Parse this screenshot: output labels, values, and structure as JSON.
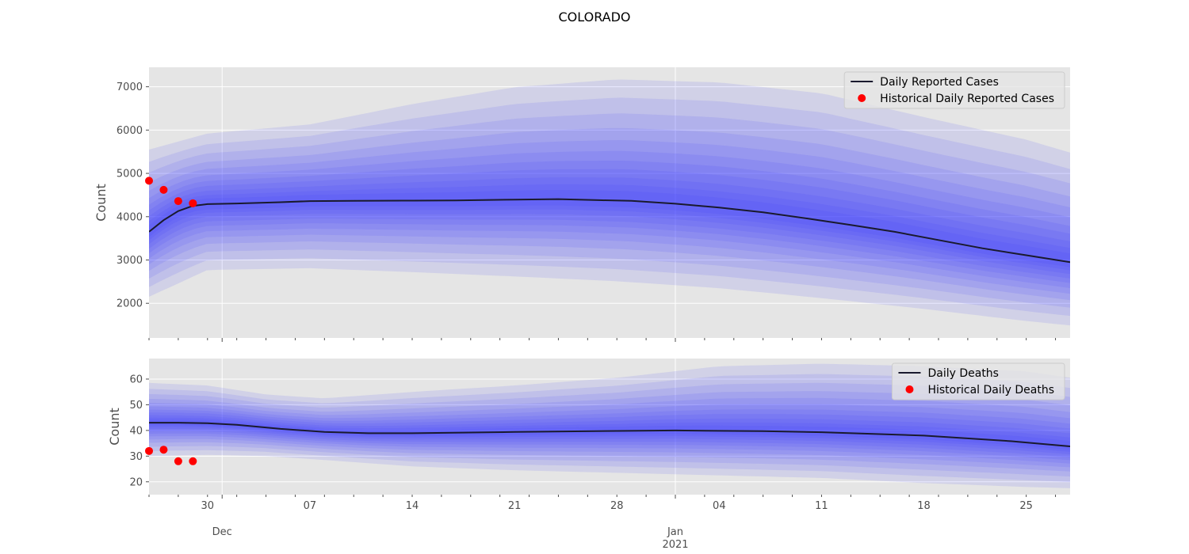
{
  "figure": {
    "title": "COLORADO"
  },
  "chart_data": [
    {
      "type": "line",
      "title": "",
      "xlabel": "",
      "ylabel": "Count",
      "xlim": [
        "2020-11-26",
        "2021-01-28"
      ],
      "ylim": [
        1200,
        7450
      ],
      "yticks": [
        2000,
        3000,
        4000,
        5000,
        6000,
        7000
      ],
      "grid": true,
      "legend_position": "top-right",
      "series": [
        {
          "name": "Daily Reported Cases",
          "kind": "line",
          "color": "#1a1a2e",
          "x": [
            "2020-11-26",
            "2020-11-27",
            "2020-11-28",
            "2020-11-29",
            "2020-11-30",
            "2020-12-02",
            "2020-12-05",
            "2020-12-07",
            "2020-12-10",
            "2020-12-14",
            "2020-12-17",
            "2020-12-21",
            "2020-12-24",
            "2020-12-27",
            "2020-12-29",
            "2021-01-01",
            "2021-01-04",
            "2021-01-07",
            "2021-01-10",
            "2021-01-13",
            "2021-01-16",
            "2021-01-19",
            "2021-01-22",
            "2021-01-25",
            "2021-01-28"
          ],
          "y": [
            3650,
            3920,
            4130,
            4250,
            4290,
            4305,
            4335,
            4360,
            4365,
            4370,
            4375,
            4395,
            4405,
            4380,
            4365,
            4300,
            4210,
            4100,
            3960,
            3810,
            3650,
            3460,
            3270,
            3110,
            2950
          ]
        },
        {
          "name": "Historical Daily Reported Cases",
          "kind": "scatter",
          "color": "#ff0000",
          "x": [
            "2020-11-26",
            "2020-11-27",
            "2020-11-28",
            "2020-11-29"
          ],
          "y": [
            4830,
            4620,
            4360,
            4310
          ]
        }
      ],
      "band_color": "#3a3aff",
      "band_x": [
        "2020-11-26",
        "2020-11-30",
        "2020-12-07",
        "2020-12-14",
        "2020-12-21",
        "2020-12-28",
        "2021-01-04",
        "2021-01-11",
        "2021-01-18",
        "2021-01-25",
        "2021-01-28"
      ],
      "outer_upper": [
        5550,
        5920,
        6130,
        6600,
        6990,
        7170,
        7100,
        6850,
        6300,
        5780,
        5480
      ],
      "outer_lower": [
        2150,
        2770,
        2810,
        2720,
        2620,
        2510,
        2350,
        2120,
        1870,
        1590,
        1490
      ]
    },
    {
      "type": "line",
      "title": "",
      "xlabel": "",
      "ylabel": "Count",
      "xlim": [
        "2020-11-26",
        "2021-01-28"
      ],
      "ylim": [
        15,
        68
      ],
      "yticks": [
        20,
        30,
        40,
        50,
        60
      ],
      "grid": true,
      "legend_position": "top-right",
      "series": [
        {
          "name": "Daily Deaths",
          "kind": "line",
          "color": "#1a1a2e",
          "x": [
            "2020-11-26",
            "2020-11-28",
            "2020-11-30",
            "2020-12-02",
            "2020-12-05",
            "2020-12-08",
            "2020-12-11",
            "2020-12-14",
            "2020-12-21",
            "2020-12-28",
            "2021-01-01",
            "2021-01-07",
            "2021-01-11",
            "2021-01-18",
            "2021-01-24",
            "2021-01-28"
          ],
          "y": [
            43,
            43,
            42.8,
            42.2,
            40.6,
            39.4,
            38.9,
            38.9,
            39.4,
            39.8,
            40,
            39.7,
            39.3,
            38,
            35.8,
            33.8
          ]
        },
        {
          "name": "Historical Daily Deaths",
          "kind": "scatter",
          "color": "#ff0000",
          "x": [
            "2020-11-26",
            "2020-11-27",
            "2020-11-28",
            "2020-11-29"
          ],
          "y": [
            32,
            32.5,
            28,
            28
          ]
        }
      ],
      "band_color": "#3a3aff",
      "band_x": [
        "2020-11-26",
        "2020-11-30",
        "2020-12-04",
        "2020-12-08",
        "2020-12-14",
        "2020-12-21",
        "2020-12-28",
        "2021-01-04",
        "2021-01-11",
        "2021-01-18",
        "2021-01-25",
        "2021-01-28"
      ],
      "outer_upper": [
        58.5,
        57.5,
        54,
        52.5,
        55,
        57.5,
        60.5,
        65,
        66,
        65,
        63,
        60.5
      ],
      "outer_lower": [
        30,
        30.5,
        30,
        28.5,
        26,
        24.5,
        23.5,
        22.5,
        21.5,
        19.5,
        18,
        17.5
      ]
    }
  ],
  "xaxis": {
    "major_ticks": [
      {
        "label": "30",
        "date": "2020-11-30"
      },
      {
        "label": "07",
        "date": "2020-12-07"
      },
      {
        "label": "14",
        "date": "2020-12-14"
      },
      {
        "label": "21",
        "date": "2020-12-21"
      },
      {
        "label": "28",
        "date": "2020-12-28"
      },
      {
        "label": "04",
        "date": "2021-01-04"
      },
      {
        "label": "11",
        "date": "2021-01-11"
      },
      {
        "label": "18",
        "date": "2021-01-18"
      },
      {
        "label": "25",
        "date": "2021-01-25"
      }
    ],
    "month_ticks": [
      {
        "label": "Dec",
        "date": "2020-12-01"
      },
      {
        "label": "Jan\n2021",
        "date": "2021-01-01"
      }
    ]
  }
}
